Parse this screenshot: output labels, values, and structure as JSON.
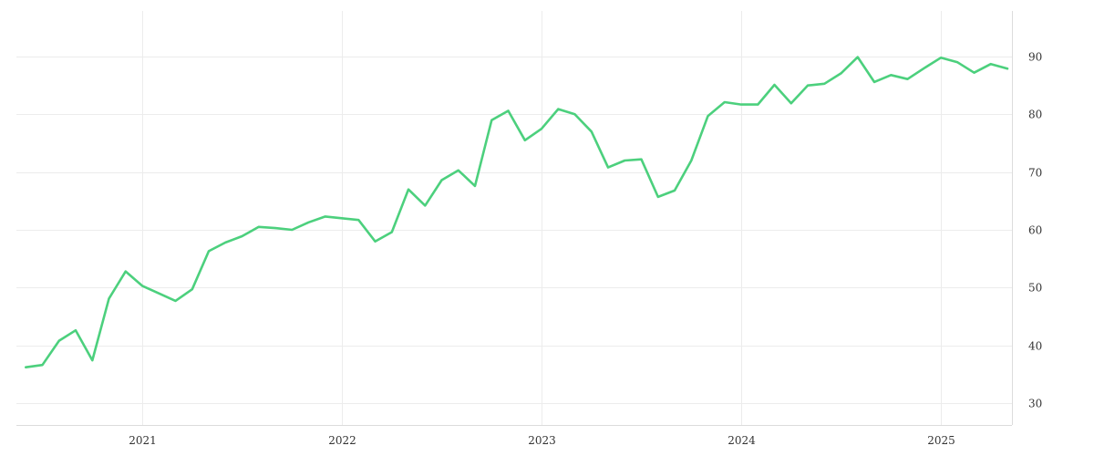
{
  "chart_data": {
    "type": "line",
    "title": "",
    "xlabel": "",
    "ylabel": "",
    "x_axis": {
      "type": "date",
      "range": [
        "2020-06",
        "2025-05"
      ],
      "ticks": [
        "2021",
        "2022",
        "2023",
        "2024",
        "2025"
      ]
    },
    "y_axis": {
      "position": "right",
      "range": [
        26,
        98
      ],
      "ticks": [
        30,
        40,
        50,
        60,
        70,
        80,
        90
      ]
    },
    "grid": true,
    "legend": "none",
    "series": [
      {
        "color": "#4cd07d",
        "points": [
          [
            "2020-06",
            36.2
          ],
          [
            "2020-07",
            36.6
          ],
          [
            "2020-08",
            40.8
          ],
          [
            "2020-09",
            42.6
          ],
          [
            "2020-10",
            37.4
          ],
          [
            "2020-11",
            48.1
          ],
          [
            "2020-12",
            52.8
          ],
          [
            "2021-01",
            50.3
          ],
          [
            "2021-02",
            49.0
          ],
          [
            "2021-03",
            47.7
          ],
          [
            "2021-04",
            49.7
          ],
          [
            "2021-05",
            56.3
          ],
          [
            "2021-06",
            57.8
          ],
          [
            "2021-07",
            58.9
          ],
          [
            "2021-08",
            60.5
          ],
          [
            "2021-09",
            60.3
          ],
          [
            "2021-10",
            60.0
          ],
          [
            "2021-11",
            61.3
          ],
          [
            "2021-12",
            62.3
          ],
          [
            "2022-01",
            62.0
          ],
          [
            "2022-02",
            61.7
          ],
          [
            "2022-03",
            58.0
          ],
          [
            "2022-04",
            59.6
          ],
          [
            "2022-05",
            67.0
          ],
          [
            "2022-06",
            64.2
          ],
          [
            "2022-07",
            68.6
          ],
          [
            "2022-08",
            70.3
          ],
          [
            "2022-09",
            67.6
          ],
          [
            "2022-10",
            79.0
          ],
          [
            "2022-11",
            80.6
          ],
          [
            "2022-12",
            75.5
          ],
          [
            "2023-01",
            77.5
          ],
          [
            "2023-02",
            80.9
          ],
          [
            "2023-03",
            80.0
          ],
          [
            "2023-04",
            77.0
          ],
          [
            "2023-05",
            70.8
          ],
          [
            "2023-06",
            72.0
          ],
          [
            "2023-07",
            72.2
          ],
          [
            "2023-08",
            65.7
          ],
          [
            "2023-09",
            66.8
          ],
          [
            "2023-10",
            72.0
          ],
          [
            "2023-11",
            79.7
          ],
          [
            "2023-12",
            82.1
          ],
          [
            "2024-01",
            81.7
          ],
          [
            "2024-02",
            81.7
          ],
          [
            "2024-03",
            85.1
          ],
          [
            "2024-04",
            81.9
          ],
          [
            "2024-05",
            85.0
          ],
          [
            "2024-06",
            85.3
          ],
          [
            "2024-07",
            87.1
          ],
          [
            "2024-08",
            89.9
          ],
          [
            "2024-09",
            85.6
          ],
          [
            "2024-10",
            86.8
          ],
          [
            "2024-11",
            86.1
          ],
          [
            "2024-12",
            88.0
          ],
          [
            "2025-01",
            89.8
          ],
          [
            "2025-02",
            89.0
          ],
          [
            "2025-03",
            87.2
          ],
          [
            "2025-04",
            88.7
          ],
          [
            "2025-05",
            87.9
          ]
        ]
      }
    ]
  }
}
